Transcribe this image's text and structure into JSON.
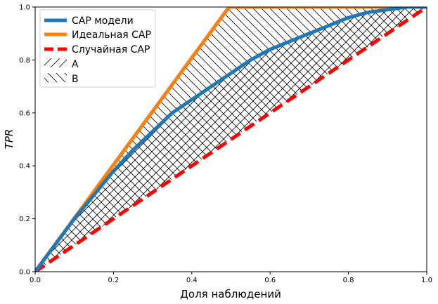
{
  "chart_data": {
    "type": "line",
    "xlabel": "Доля наблюдений",
    "ylabel": "TPR",
    "xlim": [
      0.0,
      1.0
    ],
    "ylim": [
      0.0,
      1.0
    ],
    "xticks": [
      "0.0",
      "0.2",
      "0.4",
      "0.6",
      "0.8",
      "1.0"
    ],
    "yticks": [
      "0.0",
      "0.2",
      "0.4",
      "0.6",
      "0.8",
      "1.0"
    ],
    "grid": false,
    "legend_position": "top-left",
    "series": [
      {
        "name": "CAP модели",
        "color": "#1f77b4",
        "style": "solid",
        "x": [
          0.0,
          0.05,
          0.1,
          0.15,
          0.2,
          0.25,
          0.3,
          0.35,
          0.4,
          0.45,
          0.5,
          0.55,
          0.6,
          0.65,
          0.7,
          0.75,
          0.8,
          0.85,
          0.9,
          0.95,
          1.0
        ],
        "y": [
          0.0,
          0.1,
          0.2,
          0.29,
          0.38,
          0.46,
          0.53,
          0.6,
          0.65,
          0.7,
          0.75,
          0.8,
          0.84,
          0.87,
          0.9,
          0.93,
          0.96,
          0.98,
          0.99,
          1.0,
          1.0
        ]
      },
      {
        "name": "Идеальная CAP",
        "color": "#ff7f0e",
        "style": "solid",
        "x": [
          0.0,
          0.495,
          1.0
        ],
        "y": [
          0.0,
          1.0,
          1.0
        ]
      },
      {
        "name": "Случайная CAP",
        "color": "#ff0000",
        "style": "dashed",
        "x": [
          0.0,
          1.0
        ],
        "y": [
          0.0,
          1.0
        ]
      }
    ],
    "hatched_areas": [
      {
        "name": "A",
        "pattern": "forward-diagonal",
        "between": [
          "CAP модели",
          "Случайная CAP"
        ]
      },
      {
        "name": "B",
        "pattern": "back-diagonal",
        "between": [
          "Идеальная CAP",
          "Случайная CAP"
        ]
      }
    ]
  }
}
